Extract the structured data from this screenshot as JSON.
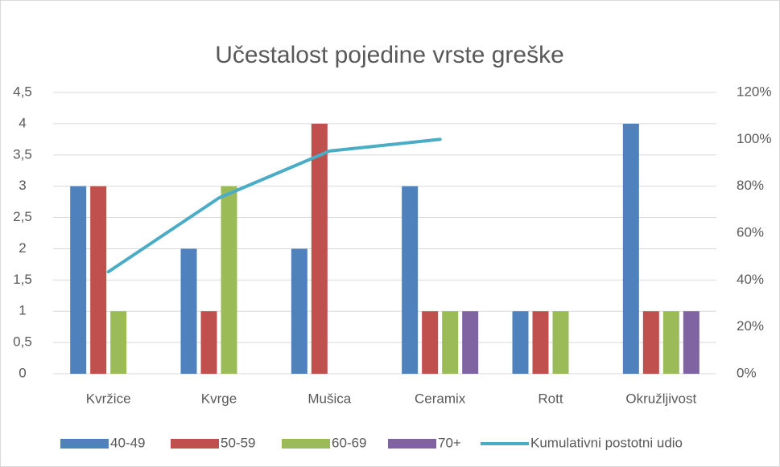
{
  "chart_data": {
    "type": "bar",
    "title": "Učestalost pojedine vrste greške",
    "categories": [
      "Kvržice",
      "Kvrge",
      "Mušica",
      "Ceramix",
      "Rott",
      "Okružljivost"
    ],
    "series": [
      {
        "name": "40-49",
        "color": "#4f81bd",
        "values": [
          3,
          2,
          2,
          3,
          1,
          4
        ]
      },
      {
        "name": "50-59",
        "color": "#c0504d",
        "values": [
          3,
          1,
          4,
          1,
          1,
          1
        ]
      },
      {
        "name": "60-69",
        "color": "#9bbb59",
        "values": [
          1,
          3,
          0,
          1,
          1,
          1
        ]
      },
      {
        "name": "70+",
        "color": "#8064a2",
        "values": [
          0,
          0,
          0,
          1,
          0,
          1
        ]
      },
      {
        "name": "Kumulativni postotni udio",
        "color": "#4bacc6",
        "type": "line",
        "axis": "y2",
        "values": [
          43.5,
          75,
          95,
          100,
          null,
          null
        ]
      }
    ],
    "ylim": [
      0,
      4.5
    ],
    "yticks": [
      0,
      {
        "value": 0.5,
        "label": "0,5"
      },
      1,
      {
        "value": 1.5,
        "label": "1,5"
      },
      2,
      {
        "value": 2.5,
        "label": "2,5"
      },
      3,
      {
        "value": 3.5,
        "label": "3,5"
      },
      4,
      {
        "value": 4.5,
        "label": "4,5"
      }
    ],
    "y2lim": [
      0,
      120
    ],
    "y2ticks": [
      {
        "value": 0,
        "label": "0%"
      },
      {
        "value": 20,
        "label": "20%"
      },
      {
        "value": 40,
        "label": "40%"
      },
      {
        "value": 60,
        "label": "60%"
      },
      {
        "value": 80,
        "label": "80%"
      },
      {
        "value": 100,
        "label": "100%"
      },
      {
        "value": 120,
        "label": "120%"
      }
    ],
    "grid": true,
    "legend": "bottom"
  }
}
